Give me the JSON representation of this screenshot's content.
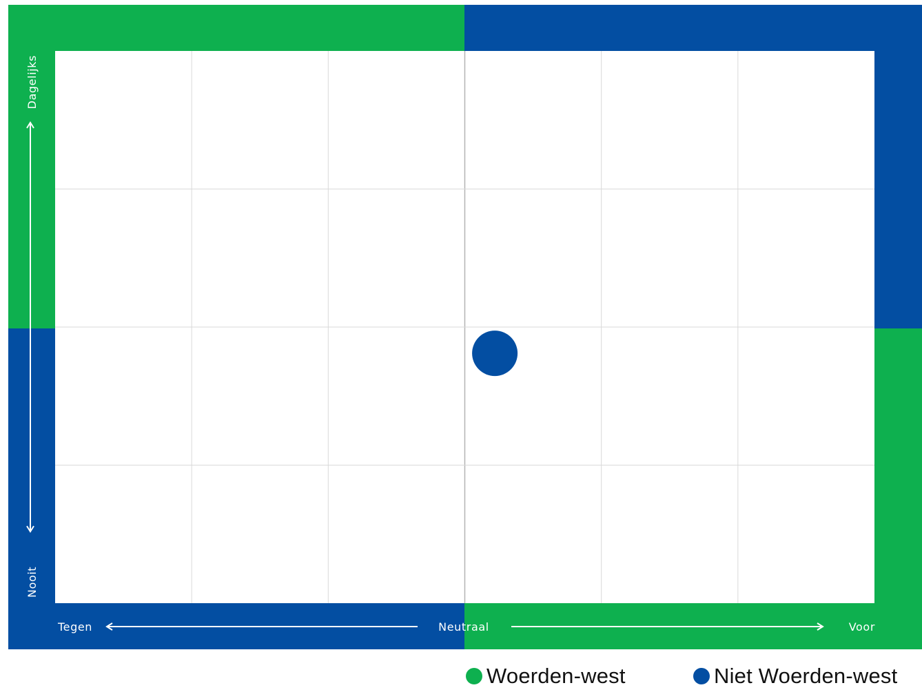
{
  "colors": {
    "green": "#0eb04f",
    "blue": "#034ea2",
    "grid": "#d9d9d9",
    "center_line": "#b3b3b3",
    "white": "#ffffff"
  },
  "chart_data": {
    "type": "scatter",
    "x_axis": {
      "left_label": "Tegen",
      "center_label": "Neutraal",
      "right_label": "Voor",
      "range": [
        -3,
        3
      ],
      "gridlines": [
        -2,
        -1,
        0,
        1,
        2
      ]
    },
    "y_axis": {
      "bottom_label": "Nooit",
      "top_label": "Dagelijks",
      "range": [
        -2,
        2
      ],
      "gridlines": [
        -1,
        0,
        1
      ]
    },
    "grid": true,
    "legend_position": "bottom-right",
    "series": [
      {
        "name": "Woerden-west",
        "color": "#0eb04f",
        "points": []
      },
      {
        "name": "Niet Woerden-west",
        "color": "#034ea2",
        "points": [
          {
            "x": 0.22,
            "y": -0.19
          }
        ]
      }
    ]
  },
  "legend": {
    "items": [
      {
        "label": "Woerden-west",
        "color": "#0eb04f"
      },
      {
        "label": "Niet Woerden-west",
        "color": "#034ea2"
      }
    ]
  }
}
